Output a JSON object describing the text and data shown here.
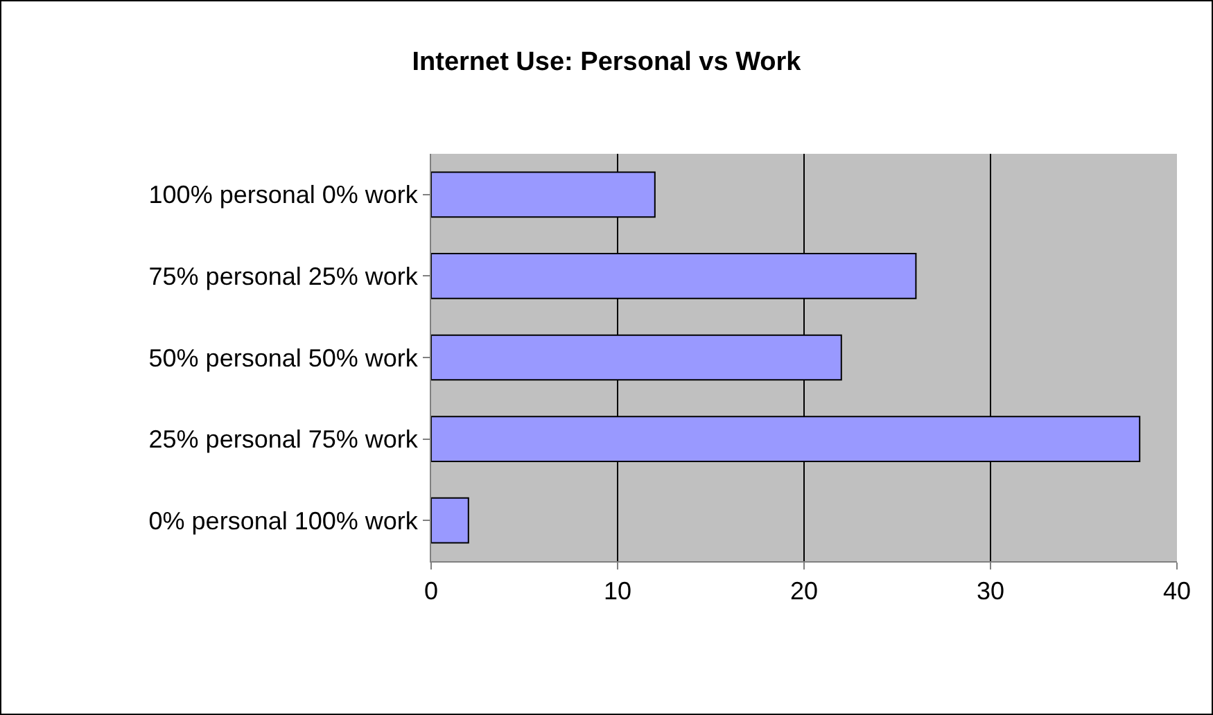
{
  "chart_data": {
    "type": "bar",
    "orientation": "horizontal",
    "title": "Internet Use: Personal vs Work",
    "categories": [
      "100% personal 0% work",
      "75% personal 25% work",
      "50% personal 50% work",
      "25% personal 75% work",
      "0% personal 100% work"
    ],
    "values": [
      12,
      26,
      22,
      38,
      2
    ],
    "color": "#9999ff",
    "xlim": [
      0,
      40
    ],
    "xticks": [
      0,
      10,
      20,
      30,
      40
    ],
    "grid": "x"
  }
}
